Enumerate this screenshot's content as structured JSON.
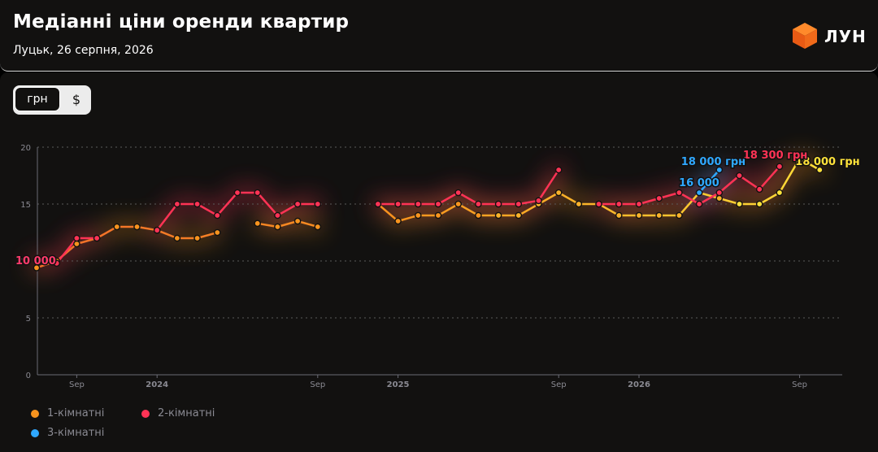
{
  "header": {
    "title": "Медіанні ціни оренди квартир",
    "subtitle": "Луцьк, 26 серпня, 2026",
    "logo_text": "ЛУН",
    "logo_icon": "cube-logo-icon"
  },
  "currency_toggle": {
    "options": [
      "грн",
      "$"
    ],
    "selected": "грн"
  },
  "legend": [
    {
      "label": "1-кімнатні",
      "color": "#f7931e"
    },
    {
      "label": "2-кімнатні",
      "color": "#ff3355"
    },
    {
      "label": "3-кімнатні",
      "color": "#2fa8ff"
    }
  ],
  "chart_data": {
    "type": "line",
    "ylim": [
      0,
      20
    ],
    "y_ticks": [
      "0",
      "5",
      "10",
      "15",
      "20"
    ],
    "x_ticks": [
      "Sep",
      "2024",
      "Sep",
      "2025",
      "Sep",
      "2026",
      "Sep"
    ],
    "grid": "horizontal dotted",
    "unit": "thousand UAH",
    "series": [
      {
        "name": "1-кімнатні",
        "color": "#f7931e",
        "values": [
          [
            "2023-07",
            9.4
          ],
          [
            "2023-08",
            10
          ],
          [
            "2023-09",
            11.5
          ],
          [
            "2023-10",
            12
          ],
          [
            "2023-11",
            13
          ],
          [
            "2023-12",
            13
          ],
          [
            "2024-01",
            12.7
          ],
          [
            "2024-02",
            12
          ],
          [
            "2024-03",
            12
          ],
          [
            "2024-04",
            12.5
          ],
          null,
          [
            "2024-06",
            13.3
          ],
          [
            "2024-07",
            13
          ],
          [
            "2024-08",
            13.5
          ],
          [
            "2024-09",
            13
          ],
          null,
          [
            "2024-12",
            15
          ],
          [
            "2025-01",
            13.5
          ],
          [
            "2025-02",
            14
          ],
          [
            "2025-03",
            14
          ],
          [
            "2025-04",
            15
          ],
          [
            "2025-05",
            14
          ],
          [
            "2025-06",
            14
          ],
          [
            "2025-07",
            14
          ],
          [
            "2025-08",
            15
          ],
          [
            "2025-09",
            16
          ],
          [
            "2025-10",
            15
          ],
          [
            "2025-11",
            15
          ],
          [
            "2025-12",
            14
          ],
          [
            "2026-01",
            14
          ],
          [
            "2026-02",
            14
          ],
          [
            "2026-03",
            14
          ],
          [
            "2026-04",
            16
          ],
          [
            "2026-05",
            15.5
          ],
          [
            "2026-06",
            15
          ],
          [
            "2026-07",
            15
          ],
          [
            "2026-08",
            16
          ],
          [
            "2026-09",
            19
          ],
          [
            "2026-10",
            18
          ]
        ],
        "last_label": "18 000 грн"
      },
      {
        "name": "2-кімнатні",
        "color": "#ff3355",
        "values": [
          [
            "2023-07",
            10
          ],
          [
            "2023-08",
            9.8
          ],
          [
            "2023-09",
            12
          ],
          [
            "2023-10",
            12
          ],
          null,
          [
            "2024-01",
            12.7
          ],
          [
            "2024-02",
            15
          ],
          [
            "2024-03",
            15
          ],
          [
            "2024-04",
            14
          ],
          [
            "2024-05",
            16
          ],
          [
            "2024-06",
            16
          ],
          [
            "2024-07",
            14
          ],
          [
            "2024-08",
            15
          ],
          [
            "2024-09",
            15
          ],
          null,
          [
            "2024-12",
            15
          ],
          [
            "2025-01",
            15
          ],
          [
            "2025-02",
            15
          ],
          [
            "2025-03",
            15
          ],
          [
            "2025-04",
            16
          ],
          [
            "2025-05",
            15
          ],
          [
            "2025-06",
            15
          ],
          [
            "2025-07",
            15
          ],
          [
            "2025-08",
            15.3
          ],
          [
            "2025-09",
            18
          ],
          null,
          [
            "2025-11",
            15
          ],
          [
            "2025-12",
            15
          ],
          [
            "2026-01",
            15
          ],
          [
            "2026-02",
            15.5
          ],
          [
            "2026-03",
            16
          ],
          [
            "2026-04",
            15
          ],
          [
            "2026-05",
            16
          ],
          [
            "2026-06",
            17.5
          ],
          [
            "2026-07",
            16.3
          ],
          [
            "2026-08",
            18.3
          ]
        ],
        "first_label": "10 000",
        "last_label": "18 300 грн"
      },
      {
        "name": "3-кімнатні",
        "color": "#2fa8ff",
        "values": [
          [
            "2026-04",
            16
          ],
          [
            "2026-05",
            18
          ]
        ],
        "first_label": "16 000",
        "last_label": "18 000 грн"
      }
    ]
  }
}
